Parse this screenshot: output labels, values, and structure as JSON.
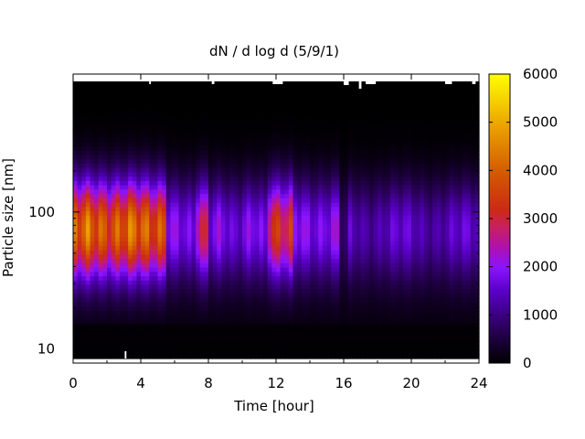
{
  "chart_data": {
    "type": "heatmap",
    "title": "dN / d log d (5/9/1)",
    "xlabel": "Time [hour]",
    "ylabel": "Particle size [nm]",
    "x_range": [
      0,
      24
    ],
    "x_ticks": [
      0,
      4,
      8,
      12,
      16,
      20,
      24
    ],
    "y_scale": "log",
    "y_range": [
      8.5,
      900
    ],
    "y_ticks": [
      10,
      100
    ],
    "colorbar": {
      "range": [
        0,
        6000
      ],
      "ticks": [
        0,
        1000,
        2000,
        3000,
        4000,
        5000,
        6000
      ],
      "palette": "black-purple-red-orange-yellow"
    },
    "grid": false,
    "features": [
      {
        "label": "high-concentration band",
        "x_range": [
          0,
          5.5
        ],
        "size_nm": 75,
        "peak_value": 4600
      },
      {
        "label": "burst",
        "x_range": [
          11.5,
          13
        ],
        "size_nm": 75,
        "peak_value": 3600
      },
      {
        "label": "burst",
        "x_range": [
          7.3,
          8
        ],
        "size_nm": 75,
        "peak_value": 3100
      },
      {
        "label": "low-concentration period",
        "x_range": [
          16,
          24
        ],
        "size_nm": 60,
        "peak_value": 1800
      }
    ]
  }
}
